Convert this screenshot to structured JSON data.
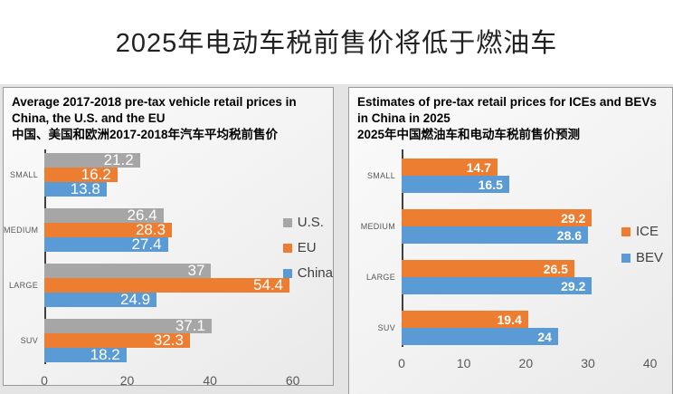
{
  "page_title": "2025年电动车税前售价将低于燃油车",
  "chart_data": [
    {
      "type": "bar",
      "orientation": "horizontal",
      "title": "Average 2017-2018 pre-tax vehicle retail prices in China, the U.S. and the EU",
      "title_zh": "中国、美国和欧洲2017-2018年汽车平均税前售价",
      "categories": [
        "SMALL",
        "MEDIUM",
        "LARGE",
        "SUV"
      ],
      "series": [
        {
          "name": "U.S.",
          "color": "#A6A6A6",
          "values": [
            21.2,
            26.4,
            37,
            37.1
          ]
        },
        {
          "name": "EU",
          "color": "#ED7D31",
          "values": [
            16.2,
            28.3,
            54.4,
            32.3
          ]
        },
        {
          "name": "China",
          "color": "#5B9BD5",
          "values": [
            13.8,
            27.4,
            24.9,
            18.2
          ]
        }
      ],
      "xticks": [
        0,
        20,
        40,
        60
      ],
      "xlim": [
        0,
        64
      ],
      "grid": false,
      "legend_position": "right",
      "value_labels": "inside-end-white"
    },
    {
      "type": "bar",
      "orientation": "horizontal",
      "title": "Estimates of pre-tax retail prices for ICEs and BEVs in China in 2025",
      "title_zh": "2025年中国燃油车和电动车税前售价预测",
      "categories": [
        "SMALL",
        "MEDIUM",
        "LARGE",
        "SUV"
      ],
      "series": [
        {
          "name": "ICE",
          "color": "#ED7D31",
          "values": [
            14.7,
            29.2,
            26.5,
            19.4
          ]
        },
        {
          "name": "BEV",
          "color": "#5B9BD5",
          "values": [
            16.5,
            28.6,
            29.2,
            24
          ]
        }
      ],
      "xticks": [
        0,
        10,
        20,
        30,
        40
      ],
      "xlim": [
        0,
        41.5
      ],
      "grid": false,
      "legend_position": "right",
      "value_labels": "inside-end-white"
    }
  ]
}
